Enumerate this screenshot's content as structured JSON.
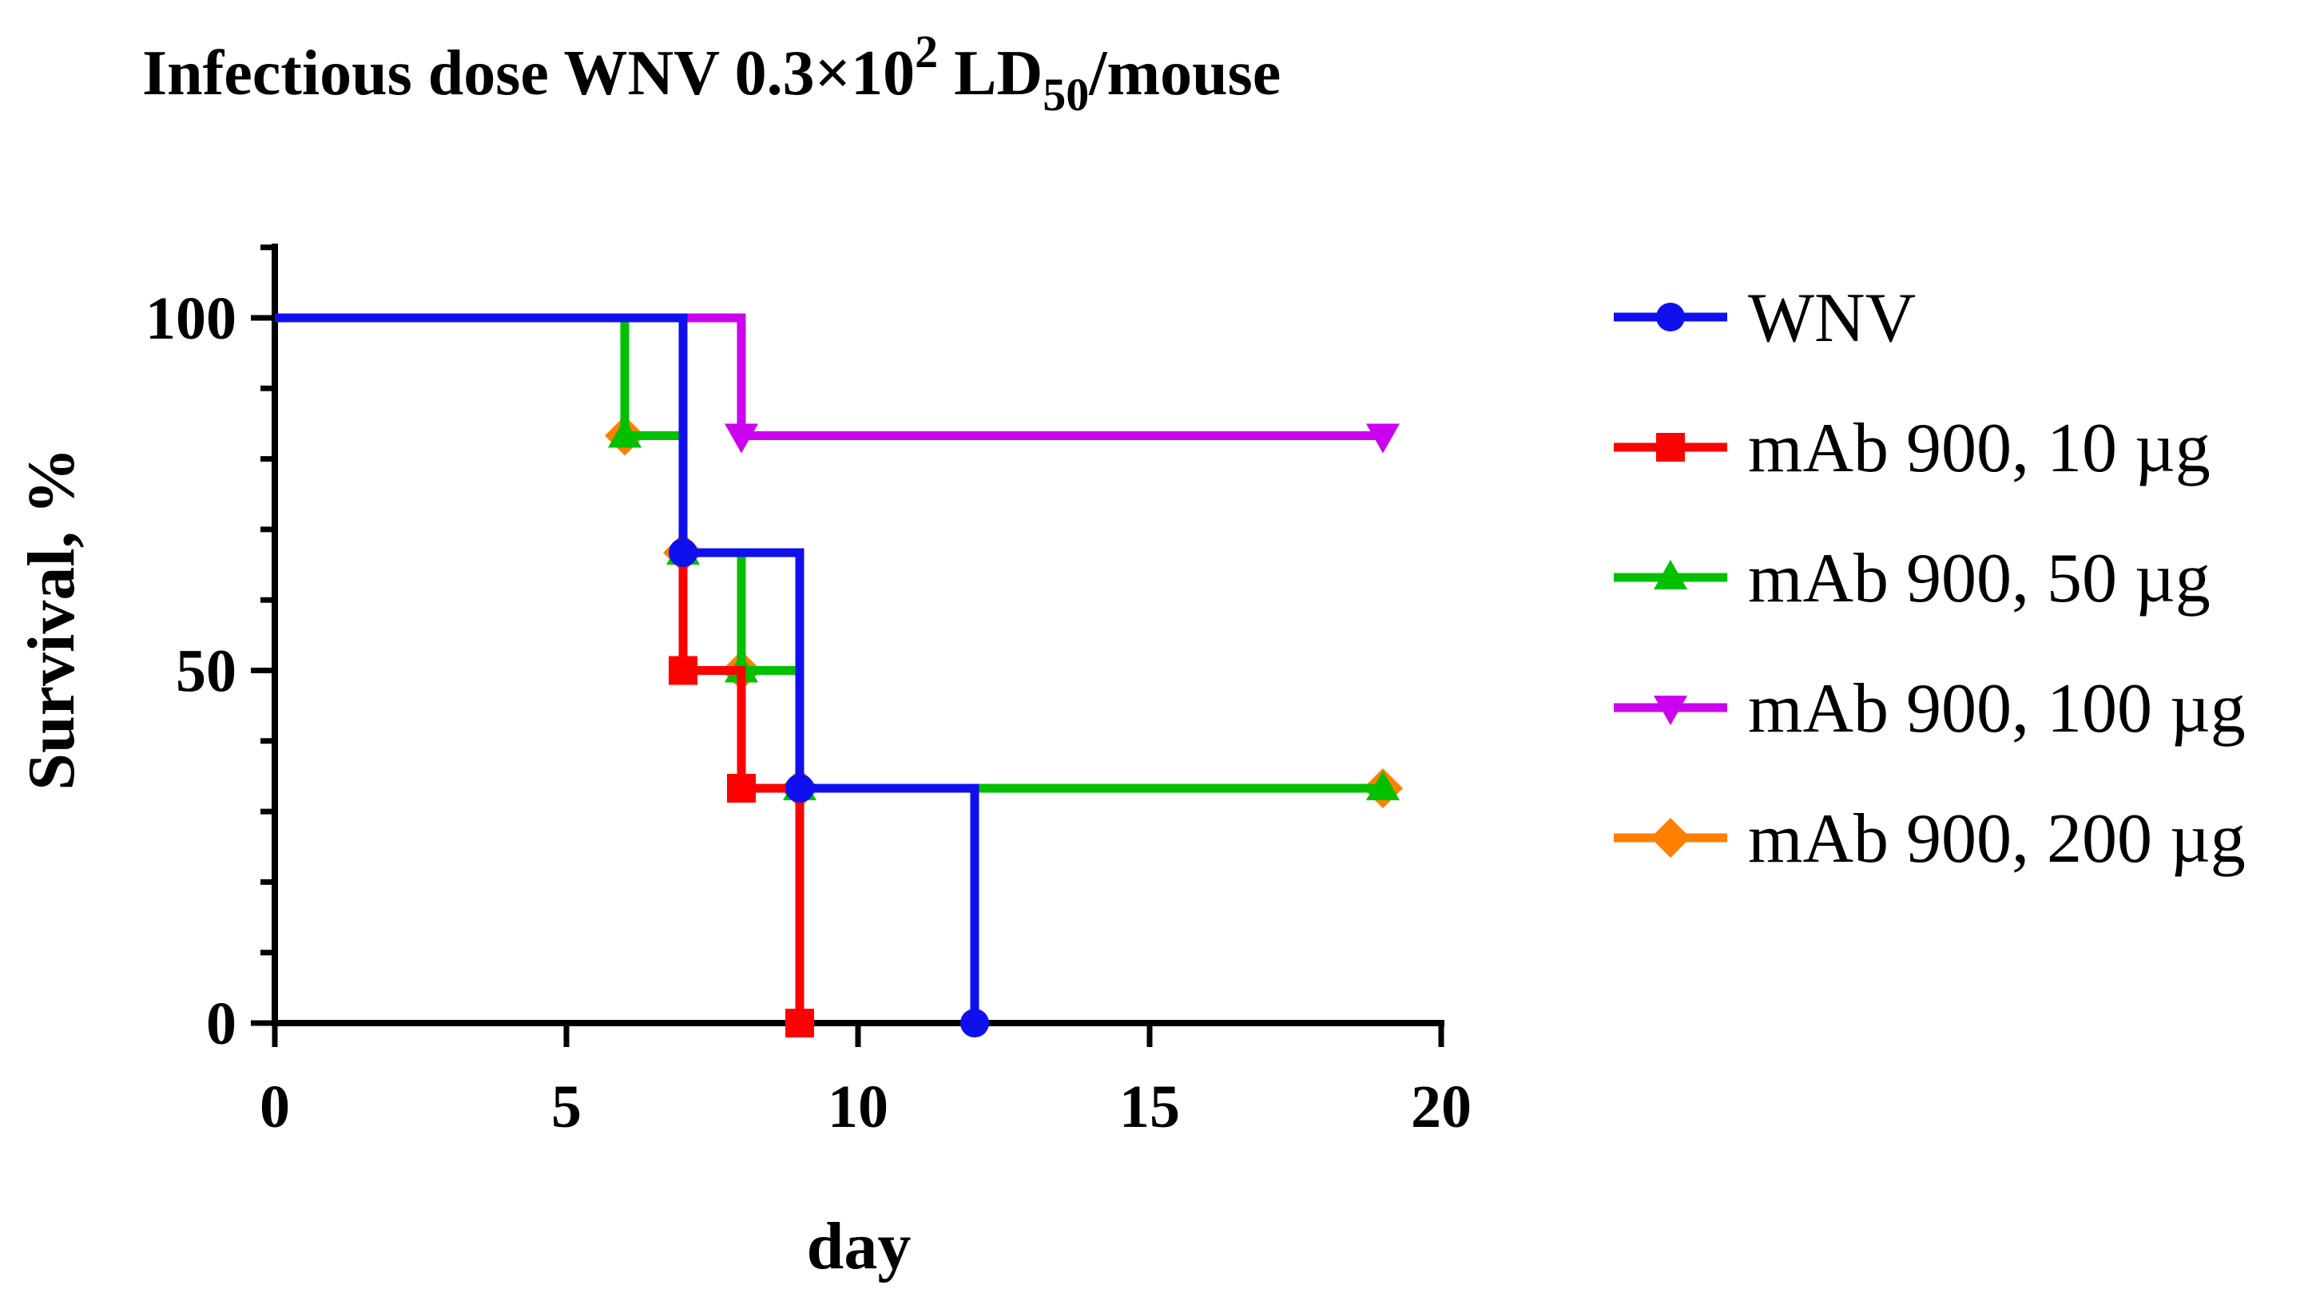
{
  "chart_data": {
    "type": "line",
    "subtype": "kaplan-meier-survival",
    "title": {
      "main": "Infectious dose WNV 0.3×10",
      "sup": "2",
      "mid": " LD",
      "sub": "50",
      "end": "/mouse"
    },
    "xlabel": "day",
    "ylabel": "Survival, %",
    "xlim": [
      0,
      20
    ],
    "ylim": [
      0,
      110
    ],
    "xticks": [
      0,
      5,
      10,
      15,
      20
    ],
    "xtick_labels": [
      "0",
      "5",
      "10",
      "15",
      "20"
    ],
    "yticks": [
      0,
      50,
      100
    ],
    "ytick_labels": [
      "0",
      "50",
      "100"
    ],
    "legend_position": "right",
    "series": [
      {
        "name": "WNV",
        "color": "#1010ee",
        "marker": "circle",
        "steps": [
          [
            0,
            100
          ],
          [
            7,
            66.7
          ],
          [
            9,
            33.3
          ],
          [
            12,
            0
          ]
        ],
        "end_x": 12,
        "markers": [
          [
            7,
            66.7
          ],
          [
            9,
            33.3
          ],
          [
            12,
            0
          ]
        ]
      },
      {
        "name": "mAb 900, 10 µg",
        "color": "#ff0000",
        "marker": "square",
        "steps": [
          [
            0,
            100
          ],
          [
            7,
            50
          ],
          [
            8,
            33.3
          ],
          [
            9,
            0
          ]
        ],
        "end_x": 9,
        "markers": [
          [
            7,
            50
          ],
          [
            8,
            33.3
          ],
          [
            9,
            0
          ]
        ]
      },
      {
        "name": "mAb 900, 50 µg",
        "color": "#00c000",
        "marker": "triangle-up",
        "steps": [
          [
            0,
            100
          ],
          [
            6,
            83.3
          ],
          [
            7,
            66.7
          ],
          [
            8,
            50
          ],
          [
            9,
            33.3
          ]
        ],
        "end_x": 19,
        "markers": [
          [
            6,
            83.3
          ],
          [
            7,
            66.7
          ],
          [
            8,
            50
          ],
          [
            9,
            33.3
          ],
          [
            19,
            33.3
          ]
        ]
      },
      {
        "name": "mAb 900, 100 µg",
        "color": "#cc00ee",
        "marker": "triangle-down",
        "steps": [
          [
            0,
            100
          ],
          [
            8,
            83.3
          ]
        ],
        "end_x": 19,
        "markers": [
          [
            8,
            83.3
          ],
          [
            19,
            83.3
          ]
        ]
      },
      {
        "name": "mAb 900, 200 µg",
        "color": "#ff8000",
        "marker": "diamond",
        "steps": [
          [
            0,
            100
          ],
          [
            6,
            83.3
          ],
          [
            7,
            66.7
          ],
          [
            8,
            50
          ],
          [
            9,
            33.3
          ]
        ],
        "end_x": 19,
        "markers": [
          [
            6,
            83.3
          ],
          [
            7,
            66.7
          ],
          [
            8,
            50
          ],
          [
            9,
            33.3
          ],
          [
            19,
            33.3
          ]
        ]
      }
    ]
  }
}
